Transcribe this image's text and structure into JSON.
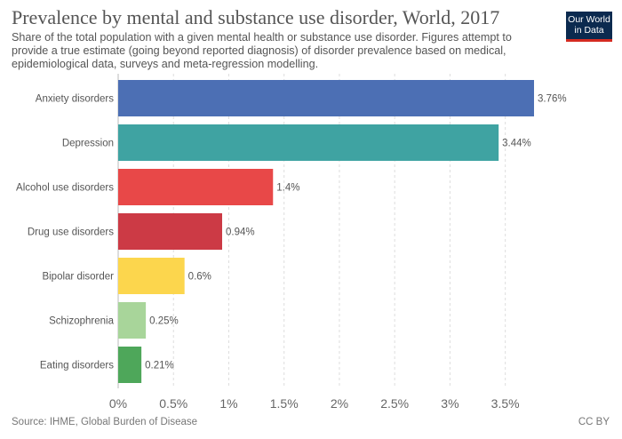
{
  "header": {
    "title": "Prevalence by mental and substance use disorder, World, 2017",
    "subtitle": "Share of the total population with a given mental health or substance use disorder. Figures attempt to provide a true estimate (going beyond reported diagnosis) of disorder prevalence based on medical, epidemiological data, surveys and meta-regression modelling."
  },
  "logo": {
    "line1": "Our World",
    "line2": "in Data"
  },
  "footer": {
    "source": "Source: IHME, Global Burden of Disease",
    "license": "CC BY"
  },
  "chart_data": {
    "type": "bar",
    "orientation": "horizontal",
    "categories": [
      "Anxiety disorders",
      "Depression",
      "Alcohol use disorders",
      "Drug use disorders",
      "Bipolar disorder",
      "Schizophrenia",
      "Eating disorders"
    ],
    "values": [
      3.76,
      3.44,
      1.4,
      0.94,
      0.6,
      0.25,
      0.21
    ],
    "value_labels": [
      "3.76%",
      "3.44%",
      "1.4%",
      "0.94%",
      "0.6%",
      "0.25%",
      "0.21%"
    ],
    "colors": [
      "#4c6fb4",
      "#3fa3a2",
      "#e84848",
      "#cc3a45",
      "#fcd64d",
      "#a8d59a",
      "#4ea75a"
    ],
    "xlim": [
      0,
      3.76
    ],
    "ticks": [
      0,
      0.5,
      1,
      1.5,
      2,
      2.5,
      3,
      3.5
    ],
    "tick_labels": [
      "0%",
      "0.5%",
      "1%",
      "1.5%",
      "2%",
      "2.5%",
      "3%",
      "3.5%"
    ],
    "grid": true
  }
}
